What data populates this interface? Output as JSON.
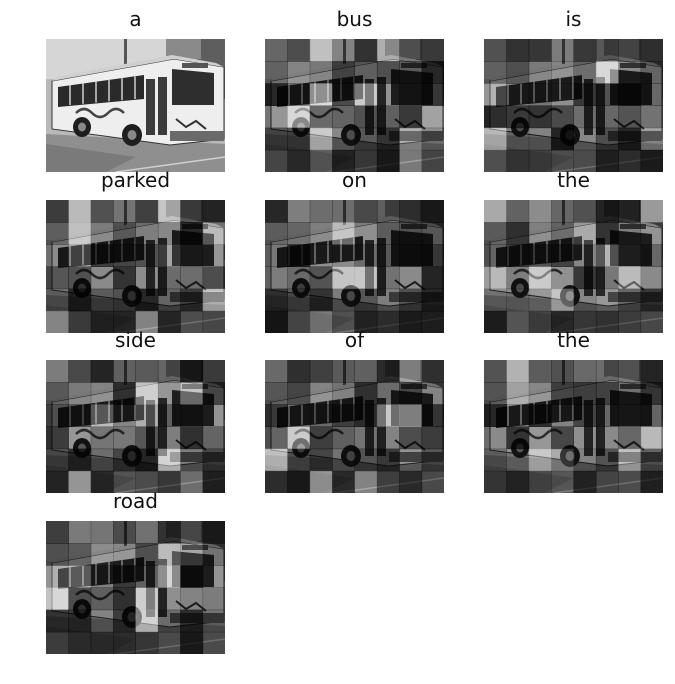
{
  "panels": [
    {
      "word": "a"
    },
    {
      "word": "bus"
    },
    {
      "word": "is"
    },
    {
      "word": "parked"
    },
    {
      "word": "on"
    },
    {
      "word": "the"
    },
    {
      "word": "side"
    },
    {
      "word": "of"
    },
    {
      "word": "the"
    },
    {
      "word": "road"
    }
  ]
}
